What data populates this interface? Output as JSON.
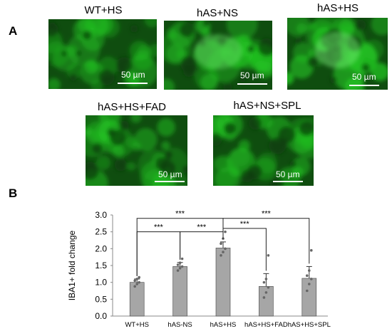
{
  "panels": {
    "a_label": "A",
    "b_label": "B"
  },
  "micrographs": [
    {
      "title": "WT+HS",
      "scale": "50 µm",
      "brightness": 0.35
    },
    {
      "title": "hAS+NS",
      "scale": "50 µm",
      "brightness": 0.6
    },
    {
      "title": "hAS+HS",
      "scale": "50 µm",
      "brightness": 0.75
    },
    {
      "title": "hAS+HS+FAD",
      "scale": "50 µm",
      "brightness": 0.45
    },
    {
      "title": "hAS+NS+SPL",
      "scale": "50 µm",
      "brightness": 0.45
    }
  ],
  "colors": {
    "fluorescence": "#22c422",
    "bar_fill": "#a6a6a6",
    "bar_edge": "#444444",
    "points": "#666666"
  },
  "chart_data": {
    "type": "bar",
    "categories": [
      "WT+HS",
      "hAS-NS",
      "hAS+HS",
      "hAS+HS+FAD",
      "hAS+HS+SPL"
    ],
    "values": [
      1.0,
      1.47,
      2.02,
      0.88,
      1.12
    ],
    "errors": [
      0.1,
      0.12,
      0.18,
      0.38,
      0.35
    ],
    "points": [
      [
        0.88,
        0.95,
        1.0,
        1.05,
        1.1,
        1.15
      ],
      [
        1.35,
        1.42,
        1.47,
        1.52,
        1.58,
        1.7
      ],
      [
        1.8,
        1.9,
        2.0,
        2.15,
        2.3,
        2.5
      ],
      [
        0.55,
        0.7,
        0.85,
        1.0,
        1.1,
        1.8
      ],
      [
        0.75,
        0.95,
        1.1,
        1.2,
        1.35,
        1.95
      ]
    ],
    "ylabel": "IBA1+ fold change",
    "xlabel": "",
    "ylim": [
      0,
      3.0
    ],
    "yticks": [
      "0.0",
      "0.5",
      "1.0",
      "1.5",
      "2.0",
      "2.5",
      "3.0"
    ],
    "significance": [
      {
        "from": 0,
        "to": 2,
        "y": 2.9,
        "label": "***"
      },
      {
        "from": 2,
        "to": 4,
        "y": 2.9,
        "label": "***"
      },
      {
        "from": 0,
        "to": 1,
        "y": 2.5,
        "label": "***"
      },
      {
        "from": 1,
        "to": 2,
        "y": 2.5,
        "label": "***"
      },
      {
        "from": 2,
        "to": 3,
        "y": 2.6,
        "label": "***"
      }
    ],
    "grid": false,
    "legend": "none"
  }
}
